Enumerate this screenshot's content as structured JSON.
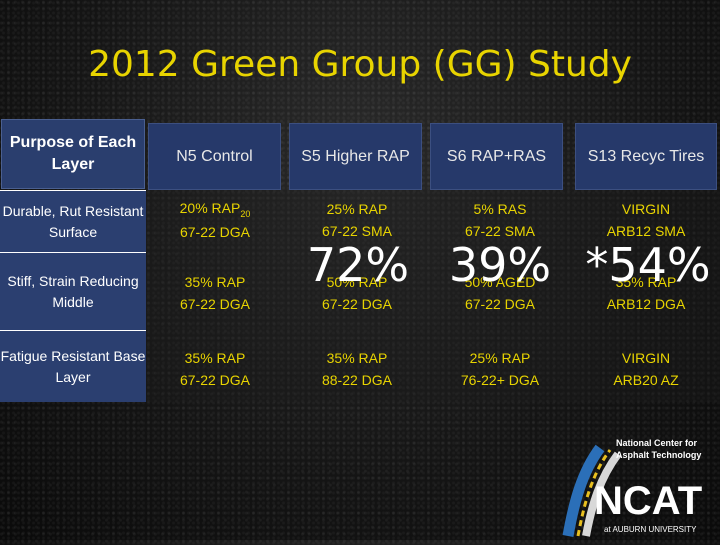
{
  "title": "2012 Green Group (GG) Study",
  "header": {
    "row_label": "Purpose of Each Layer",
    "columns": [
      "N5 Control",
      "S5 Higher RAP",
      "S6 RAP+RAS",
      "S13 Recyc Tires"
    ]
  },
  "rows": [
    {
      "label": "Durable, Rut Resistant Surface",
      "cells": [
        {
          "line1": "20% RAP",
          "sub": "20",
          "line2": "67-22 DGA"
        },
        {
          "line1": "25% RAP",
          "line2": "67-22 SMA"
        },
        {
          "line1": "5% RAS",
          "line2": "67-22 SMA"
        },
        {
          "line1": "VIRGIN",
          "line2": "ARB12 SMA"
        }
      ]
    },
    {
      "label": "Stiff, Strain Reducing Middle",
      "cells": [
        {
          "line1": "35% RAP",
          "line2": "67-22 DGA"
        },
        {
          "line1": "50% RAP",
          "line2": "67-22 DGA"
        },
        {
          "line1": "50% AGED",
          "line2": "67-22 DGA"
        },
        {
          "line1": "35% RAP",
          "line2": "ARB12 DGA"
        }
      ]
    },
    {
      "label": "Fatigue Resistant Base Layer",
      "cells": [
        {
          "line1": "35% RAP",
          "line2": "67-22 DGA"
        },
        {
          "line1": "35% RAP",
          "line2": "88-22 DGA"
        },
        {
          "line1": "25% RAP",
          "line2": "76-22+ DGA"
        },
        {
          "line1": "VIRGIN",
          "line2": "ARB20 AZ"
        }
      ]
    }
  ],
  "overlays": [
    "72%",
    "39%",
    "*54%"
  ],
  "logo": {
    "line1": "National Center for",
    "line2": "Asphalt Technology",
    "acronym": "NCAT",
    "footer": "at AUBURN UNIVERSITY"
  },
  "colors": {
    "title": "#e8d400",
    "cell_text": "#e8d400",
    "header_bg": "#26396a",
    "label_bg": "#2b3f70"
  }
}
